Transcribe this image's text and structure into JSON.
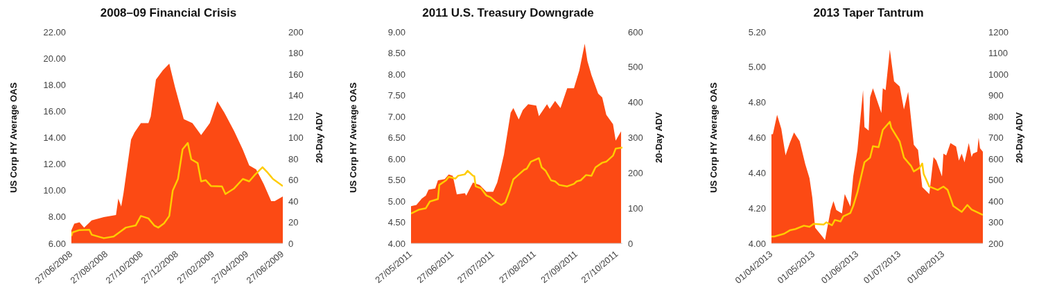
{
  "chart_data": [
    {
      "type": "area",
      "title": "2008–09 Financial Crisis",
      "ylabel": "US Corp HY Average OAS",
      "y2label": "20-Day ADV",
      "xlim": [
        "2008-06-27",
        "2009-06-27"
      ],
      "xticks": [
        {
          "value": "2008-06-27",
          "label": "27/06/2008"
        },
        {
          "value": "2008-08-27",
          "label": "27/08/2008"
        },
        {
          "value": "2008-10-27",
          "label": "27/10/2008"
        },
        {
          "value": "2008-12-27",
          "label": "27/12/2008"
        },
        {
          "value": "2009-02-27",
          "label": "27/02/2009"
        },
        {
          "value": "2009-04-27",
          "label": "27/04/2009"
        },
        {
          "value": "2009-06-27",
          "label": "27/06/2009"
        }
      ],
      "ylim": [
        6,
        22
      ],
      "yticks": [
        {
          "value": 6,
          "label": "6.00"
        },
        {
          "value": 8,
          "label": "8.00"
        },
        {
          "value": 10,
          "label": "10.00"
        },
        {
          "value": 12,
          "label": "12.00"
        },
        {
          "value": 14,
          "label": "14.00"
        },
        {
          "value": 16,
          "label": "16.00"
        },
        {
          "value": 18,
          "label": "18.00"
        },
        {
          "value": 20,
          "label": "20.00"
        },
        {
          "value": 22,
          "label": "22.00"
        }
      ],
      "y2lim": [
        0,
        200
      ],
      "y2ticks": [
        0,
        20,
        40,
        60,
        80,
        100,
        120,
        140,
        160,
        180,
        200
      ],
      "series": [
        {
          "type": "area",
          "color": "#fc4a14",
          "x": [
            "2008-06-27",
            "2008-07-02",
            "2008-07-11",
            "2008-07-19",
            "2008-08-01",
            "2008-08-22",
            "2008-09-12",
            "2008-09-16",
            "2008-09-21",
            "2008-09-25",
            "2008-10-08",
            "2008-10-14",
            "2008-10-25",
            "2008-11-07",
            "2008-11-11",
            "2008-11-20",
            "2008-12-02",
            "2008-12-13",
            "2008-12-23",
            "2009-01-07",
            "2009-01-22",
            "2009-02-06",
            "2009-02-21",
            "2009-03-06",
            "2009-03-18",
            "2009-04-04",
            "2009-04-19",
            "2009-04-30",
            "2009-05-12",
            "2009-05-25",
            "2009-06-07",
            "2009-06-13",
            "2009-06-27"
          ],
          "values": [
            7.0,
            7.5,
            7.6,
            7.2,
            7.75,
            8.0,
            8.15,
            9.4,
            8.8,
            9.8,
            13.85,
            14.4,
            15.1,
            15.1,
            15.6,
            18.4,
            19.1,
            19.6,
            17.8,
            15.4,
            15.1,
            14.2,
            15.1,
            16.75,
            15.9,
            14.5,
            13.1,
            11.9,
            11.6,
            10.5,
            9.2,
            9.2,
            9.55
          ]
        },
        {
          "type": "line",
          "axis": "y2",
          "color": "#ffcc00",
          "x": [
            "2008-06-27",
            "2008-06-29",
            "2008-07-11",
            "2008-07-28",
            "2008-08-01",
            "2008-08-22",
            "2008-09-08",
            "2008-09-19",
            "2008-09-29",
            "2008-10-16",
            "2008-10-25",
            "2008-11-07",
            "2008-11-17",
            "2008-11-24",
            "2008-12-04",
            "2008-12-13",
            "2008-12-19",
            "2008-12-28",
            "2009-01-05",
            "2009-01-14",
            "2009-01-20",
            "2009-01-31",
            "2009-02-06",
            "2009-02-14",
            "2009-02-23",
            "2009-03-14",
            "2009-03-20",
            "2009-04-04",
            "2009-04-19",
            "2009-04-30",
            "2009-05-10",
            "2009-05-23",
            "2009-05-31",
            "2009-06-10",
            "2009-06-27"
          ],
          "values": [
            7,
            10.5,
            12.7,
            13,
            8.3,
            5,
            6.6,
            11,
            15,
            17,
            26,
            23.7,
            17,
            15,
            19,
            26,
            50,
            61,
            89,
            95,
            79.5,
            76,
            58.7,
            59.8,
            54.3,
            54,
            46.7,
            52,
            61,
            58.7,
            65,
            72,
            67.5,
            61,
            54.3
          ]
        }
      ]
    },
    {
      "type": "area",
      "title": "2011 U.S. Treasury Downgrade",
      "ylabel": "US Corp HY Average OAS",
      "y2label": "20-Day ADV",
      "xlim": [
        "2011-05-27",
        "2011-10-31"
      ],
      "xticks": [
        {
          "value": "2011-05-27",
          "label": "27/05/2011"
        },
        {
          "value": "2011-06-27",
          "label": "27/06/2011"
        },
        {
          "value": "2011-07-27",
          "label": "27/07/2011"
        },
        {
          "value": "2011-08-27",
          "label": "27/08/2011"
        },
        {
          "value": "2011-09-27",
          "label": "27/09/2011"
        },
        {
          "value": "2011-10-27",
          "label": "27/10/2011"
        }
      ],
      "ylim": [
        4,
        9
      ],
      "yticks": [
        {
          "value": 4,
          "label": "4.00"
        },
        {
          "value": 4.5,
          "label": "4.50"
        },
        {
          "value": 5,
          "label": "5.00"
        },
        {
          "value": 5.5,
          "label": "5.50"
        },
        {
          "value": 6,
          "label": "6.00"
        },
        {
          "value": 6.5,
          "label": "6.50"
        },
        {
          "value": 7,
          "label": "7.00"
        },
        {
          "value": 7.5,
          "label": "7.50"
        },
        {
          "value": 8,
          "label": "8.00"
        },
        {
          "value": 8.5,
          "label": "8.50"
        },
        {
          "value": 9,
          "label": "9.00"
        }
      ],
      "y2lim": [
        0,
        600
      ],
      "y2ticks": [
        0,
        100,
        200,
        300,
        400,
        500,
        600
      ],
      "series": [
        {
          "type": "area",
          "color": "#fc4a14",
          "x": [
            "2011-05-27",
            "2011-05-31",
            "2011-06-04",
            "2011-06-07",
            "2011-06-09",
            "2011-06-14",
            "2011-06-16",
            "2011-06-21",
            "2011-06-24",
            "2011-06-27",
            "2011-06-30",
            "2011-07-06",
            "2011-07-07",
            "2011-07-12",
            "2011-07-17",
            "2011-07-22",
            "2011-07-27",
            "2011-07-30",
            "2011-08-01",
            "2011-08-04",
            "2011-08-09",
            "2011-08-11",
            "2011-08-15",
            "2011-08-18",
            "2011-08-22",
            "2011-08-28",
            "2011-08-30",
            "2011-09-05",
            "2011-09-07",
            "2011-09-11",
            "2011-09-15",
            "2011-09-20",
            "2011-09-25",
            "2011-09-29",
            "2011-10-03",
            "2011-10-05",
            "2011-10-08",
            "2011-10-13",
            "2011-10-16",
            "2011-10-19",
            "2011-10-24",
            "2011-10-26",
            "2011-10-30"
          ],
          "values": [
            4.88,
            4.91,
            5.06,
            5.13,
            5.27,
            5.3,
            5.49,
            5.52,
            5.63,
            5.6,
            5.16,
            5.19,
            5.13,
            5.44,
            5.38,
            5.22,
            5.22,
            5.44,
            5.69,
            6.1,
            7.09,
            7.2,
            6.93,
            7.15,
            7.29,
            7.26,
            7.01,
            7.29,
            7.18,
            7.37,
            7.2,
            7.67,
            7.67,
            8.09,
            8.72,
            8.31,
            7.98,
            7.54,
            7.45,
            7.04,
            6.82,
            6.43,
            6.65
          ]
        },
        {
          "type": "line",
          "axis": "y2",
          "color": "#ffcc00",
          "x": [
            "2011-05-27",
            "2011-06-02",
            "2011-06-07",
            "2011-06-10",
            "2011-06-16",
            "2011-06-17",
            "2011-06-22",
            "2011-06-24",
            "2011-06-29",
            "2011-07-01",
            "2011-07-06",
            "2011-07-08",
            "2011-07-12",
            "2011-07-13",
            "2011-07-14",
            "2011-07-18",
            "2011-07-22",
            "2011-07-25",
            "2011-07-29",
            "2011-08-02",
            "2011-08-05",
            "2011-08-08",
            "2011-08-11",
            "2011-08-14",
            "2011-08-19",
            "2011-08-21",
            "2011-08-24",
            "2011-08-30",
            "2011-09-01",
            "2011-09-04",
            "2011-09-08",
            "2011-09-11",
            "2011-09-14",
            "2011-09-20",
            "2011-09-25",
            "2011-09-27",
            "2011-09-30",
            "2011-10-04",
            "2011-10-08",
            "2011-10-11",
            "2011-10-16",
            "2011-10-19",
            "2011-10-24",
            "2011-10-26",
            "2011-10-31"
          ],
          "values": [
            85,
            96,
            100,
            119,
            126,
            166,
            179,
            189,
            184,
            192,
            196,
            206,
            192,
            191,
            162,
            156,
            136,
            131,
            118,
            109,
            116,
            146,
            182,
            192,
            209,
            212,
            232,
            242,
            216,
            206,
            179,
            176,
            166,
            162,
            169,
            176,
            179,
            194,
            192,
            216,
            229,
            232,
            249,
            269,
            272
          ]
        }
      ]
    },
    {
      "type": "area",
      "title": "2013 Taper Tantrum",
      "ylabel": "US Corp HY Average OAS",
      "y2label": "20-Day ADV",
      "xlim": [
        "2013-04-01",
        "2013-08-29"
      ],
      "xticks": [
        {
          "value": "2013-04-01",
          "label": "01/04/2013"
        },
        {
          "value": "2013-05-01",
          "label": "01/05/2013"
        },
        {
          "value": "2013-06-01",
          "label": "01/06/2013"
        },
        {
          "value": "2013-07-01",
          "label": "01/07/2013"
        },
        {
          "value": "2013-08-01",
          "label": "01/08/2013"
        }
      ],
      "ylim": [
        4,
        5.2
      ],
      "yticks": [
        {
          "value": 4,
          "label": "4.00"
        },
        {
          "value": 4.2,
          "label": "4.20"
        },
        {
          "value": 4.4,
          "label": "4.40"
        },
        {
          "value": 4.6,
          "label": "4.60"
        },
        {
          "value": 4.8,
          "label": "4.80"
        },
        {
          "value": 5,
          "label": "5.00"
        },
        {
          "value": 5.2,
          "label": "5.20"
        }
      ],
      "y2lim": [
        200,
        1200
      ],
      "y2ticks": [
        200,
        300,
        400,
        500,
        600,
        700,
        800,
        900,
        1000,
        1100,
        1200
      ],
      "series": [
        {
          "type": "area",
          "color": "#fc4a14",
          "x": [
            "2013-04-01",
            "2013-04-02",
            "2013-04-05",
            "2013-04-08",
            "2013-04-11",
            "2013-04-14",
            "2013-04-17",
            "2013-04-21",
            "2013-04-25",
            "2013-04-28",
            "2013-04-30",
            "2013-05-02",
            "2013-05-06",
            "2013-05-09",
            "2013-05-13",
            "2013-05-15",
            "2013-05-17",
            "2013-05-21",
            "2013-05-23",
            "2013-05-27",
            "2013-05-29",
            "2013-06-01",
            "2013-06-05",
            "2013-06-06",
            "2013-06-09",
            "2013-06-10",
            "2013-06-12",
            "2013-06-18",
            "2013-06-19",
            "2013-06-21",
            "2013-06-24",
            "2013-06-27",
            "2013-07-01",
            "2013-07-04",
            "2013-07-07",
            "2013-07-11",
            "2013-07-14",
            "2013-07-17",
            "2013-07-22",
            "2013-07-25",
            "2013-07-27",
            "2013-07-31",
            "2013-08-01",
            "2013-08-03",
            "2013-08-06",
            "2013-08-10",
            "2013-08-12",
            "2013-08-14",
            "2013-08-16",
            "2013-08-19",
            "2013-08-21",
            "2013-08-22",
            "2013-08-25",
            "2013-08-26",
            "2013-08-27",
            "2013-08-29"
          ],
          "values": [
            4.62,
            4.62,
            4.73,
            4.65,
            4.5,
            4.57,
            4.63,
            4.58,
            4.45,
            4.37,
            4.26,
            4.09,
            4.05,
            4.02,
            4.19,
            4.24,
            4.19,
            4.17,
            4.28,
            4.21,
            4.38,
            4.53,
            4.87,
            4.66,
            4.64,
            4.83,
            4.88,
            4.74,
            4.88,
            4.87,
            5.1,
            4.92,
            4.89,
            4.76,
            4.86,
            4.56,
            4.53,
            4.32,
            4.28,
            4.49,
            4.47,
            4.38,
            4.51,
            4.5,
            4.57,
            4.55,
            4.47,
            4.51,
            4.46,
            4.57,
            4.49,
            4.51,
            4.52,
            4.6,
            4.54,
            4.52
          ]
        },
        {
          "type": "line",
          "axis": "y2",
          "color": "#ffcc00",
          "x": [
            "2013-04-01",
            "2013-04-03",
            "2013-04-10",
            "2013-04-14",
            "2013-04-18",
            "2013-04-24",
            "2013-04-28",
            "2013-05-01",
            "2013-05-08",
            "2013-05-10",
            "2013-05-14",
            "2013-05-16",
            "2013-05-20",
            "2013-05-22",
            "2013-05-27",
            "2013-05-29",
            "2013-06-01",
            "2013-06-06",
            "2013-06-10",
            "2013-06-12",
            "2013-06-16",
            "2013-06-19",
            "2013-06-24",
            "2013-06-25",
            "2013-07-01",
            "2013-07-04",
            "2013-07-09",
            "2013-07-11",
            "2013-07-15",
            "2013-07-17",
            "2013-07-18",
            "2013-07-22",
            "2013-07-28",
            "2013-08-01",
            "2013-08-04",
            "2013-08-08",
            "2013-08-14",
            "2013-08-18",
            "2013-08-21",
            "2013-08-29"
          ],
          "values": [
            233,
            233,
            246,
            262,
            268,
            284,
            279,
            293,
            289,
            300,
            286,
            311,
            304,
            328,
            344,
            377,
            442,
            584,
            606,
            660,
            655,
            737,
            775,
            747,
            682,
            606,
            567,
            540,
            557,
            578,
            529,
            469,
            453,
            469,
            453,
            377,
            349,
            382,
            360,
            335
          ]
        }
      ]
    }
  ]
}
